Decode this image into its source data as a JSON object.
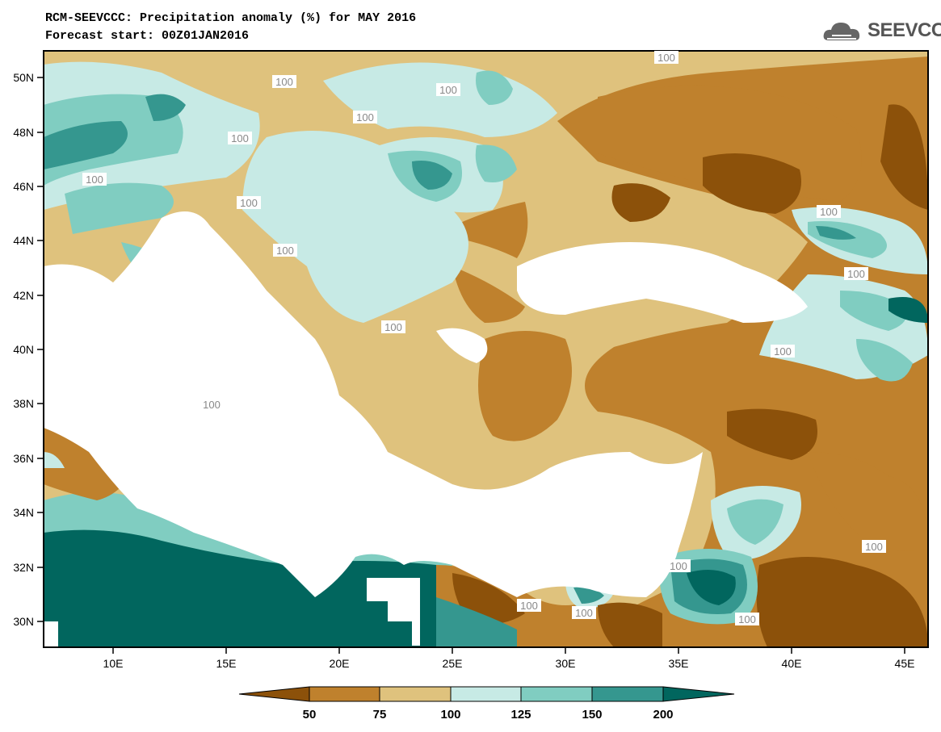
{
  "title_line1": "RCM-SEEVCCC: Precipitation anomaly (%) for MAY 2016",
  "title_line2": "Forecast start: 00Z01JAN2016",
  "logo_text": "SEEVCCC",
  "logo_icon": "cloud-icon",
  "map": {
    "lat_labels": [
      "50N",
      "48N",
      "46N",
      "44N",
      "42N",
      "40N",
      "38N",
      "36N",
      "34N",
      "32N",
      "30N"
    ],
    "lon_labels": [
      "10E",
      "15E",
      "20E",
      "25E",
      "30E",
      "35E",
      "40E",
      "45E"
    ],
    "contour_labels": [
      "100",
      "100",
      "100",
      "100",
      "100",
      "100",
      "100",
      "100",
      "100",
      "100",
      "100",
      "100",
      "100",
      "100",
      "100",
      "100",
      "100",
      "100"
    ]
  },
  "colorbar": {
    "levels": [
      "50",
      "75",
      "100",
      "125",
      "150",
      "200"
    ],
    "colors": [
      "#8c510a",
      "#bf812d",
      "#dfc27d",
      "#c7eae5",
      "#80cdc1",
      "#35978f",
      "#01665e"
    ]
  }
}
